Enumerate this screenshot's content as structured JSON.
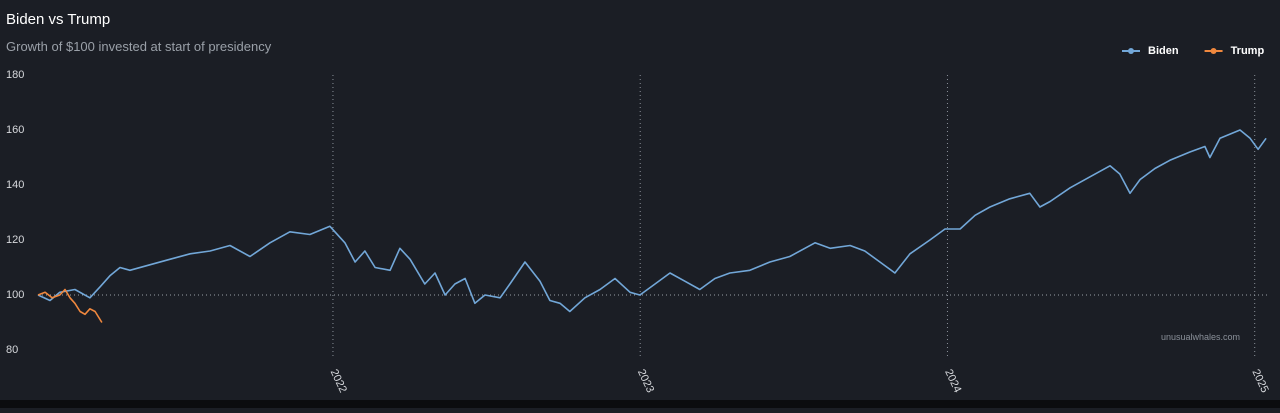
{
  "chart_data": {
    "type": "line",
    "title": "Biden vs Trump",
    "subtitle": "Growth of $100 invested at start of presidency",
    "watermark": "unusualwhales.com",
    "xlim": [
      2021.04,
      2025.04
    ],
    "xticks": [
      2022,
      2023,
      2024,
      2025
    ],
    "ylim": [
      80,
      180
    ],
    "yticks": [
      80,
      100,
      120,
      140,
      160,
      180
    ],
    "reference_line": 100,
    "grid": true,
    "legend": "top-right",
    "series": [
      {
        "name": "Biden",
        "color": "#72a7d8",
        "x": [
          2021.04,
          2021.079,
          2021.111,
          2021.16,
          2021.209,
          2021.242,
          2021.274,
          2021.307,
          2021.339,
          2021.404,
          2021.469,
          2021.535,
          2021.6,
          2021.665,
          2021.73,
          2021.795,
          2021.86,
          2021.925,
          2021.99,
          2022.039,
          2022.072,
          2022.104,
          2022.137,
          2022.186,
          2022.218,
          2022.251,
          2022.299,
          2022.332,
          2022.365,
          2022.397,
          2022.43,
          2022.462,
          2022.495,
          2022.544,
          2022.576,
          2022.625,
          2022.674,
          2022.706,
          2022.739,
          2022.771,
          2022.82,
          2022.869,
          2022.918,
          2022.967,
          2022.999,
          2023.048,
          2023.097,
          2023.146,
          2023.194,
          2023.243,
          2023.292,
          2023.357,
          2023.422,
          2023.487,
          2023.569,
          2023.618,
          2023.683,
          2023.731,
          2023.78,
          2023.829,
          2023.878,
          2023.943,
          2023.992,
          2024.041,
          2024.09,
          2024.138,
          2024.203,
          2024.268,
          2024.301,
          2024.334,
          2024.399,
          2024.464,
          2024.529,
          2024.561,
          2024.594,
          2024.627,
          2024.675,
          2024.724,
          2024.789,
          2024.838,
          2024.854,
          2024.887,
          2024.952,
          2024.985,
          2025.011,
          2025.037
        ],
        "values": [
          100,
          98,
          101,
          102,
          99,
          103,
          107,
          110,
          109,
          111,
          113,
          115,
          116,
          118,
          114,
          119,
          123,
          122,
          125,
          119,
          112,
          116,
          110,
          109,
          117,
          113,
          104,
          108,
          100,
          104,
          106,
          97,
          100,
          99,
          104,
          112,
          105,
          98,
          97,
          94,
          99,
          102,
          106,
          101,
          100,
          104,
          108,
          105,
          102,
          106,
          108,
          109,
          112,
          114,
          119,
          117,
          118,
          116,
          112,
          108,
          115,
          120,
          124,
          124,
          129,
          132,
          135,
          137,
          132,
          134,
          139,
          143,
          147,
          144,
          137,
          142,
          146,
          149,
          152,
          154,
          150,
          157,
          160,
          157,
          153,
          157
        ]
      },
      {
        "name": "Trump",
        "color": "#f0883e",
        "x": [
          2021.04,
          2021.063,
          2021.086,
          2021.111,
          2021.128,
          2021.144,
          2021.16,
          2021.177,
          2021.193,
          2021.209,
          2021.226,
          2021.248
        ],
        "values": [
          100,
          101,
          99,
          100,
          102,
          99,
          97,
          94,
          93,
          95,
          94,
          90
        ]
      }
    ]
  }
}
